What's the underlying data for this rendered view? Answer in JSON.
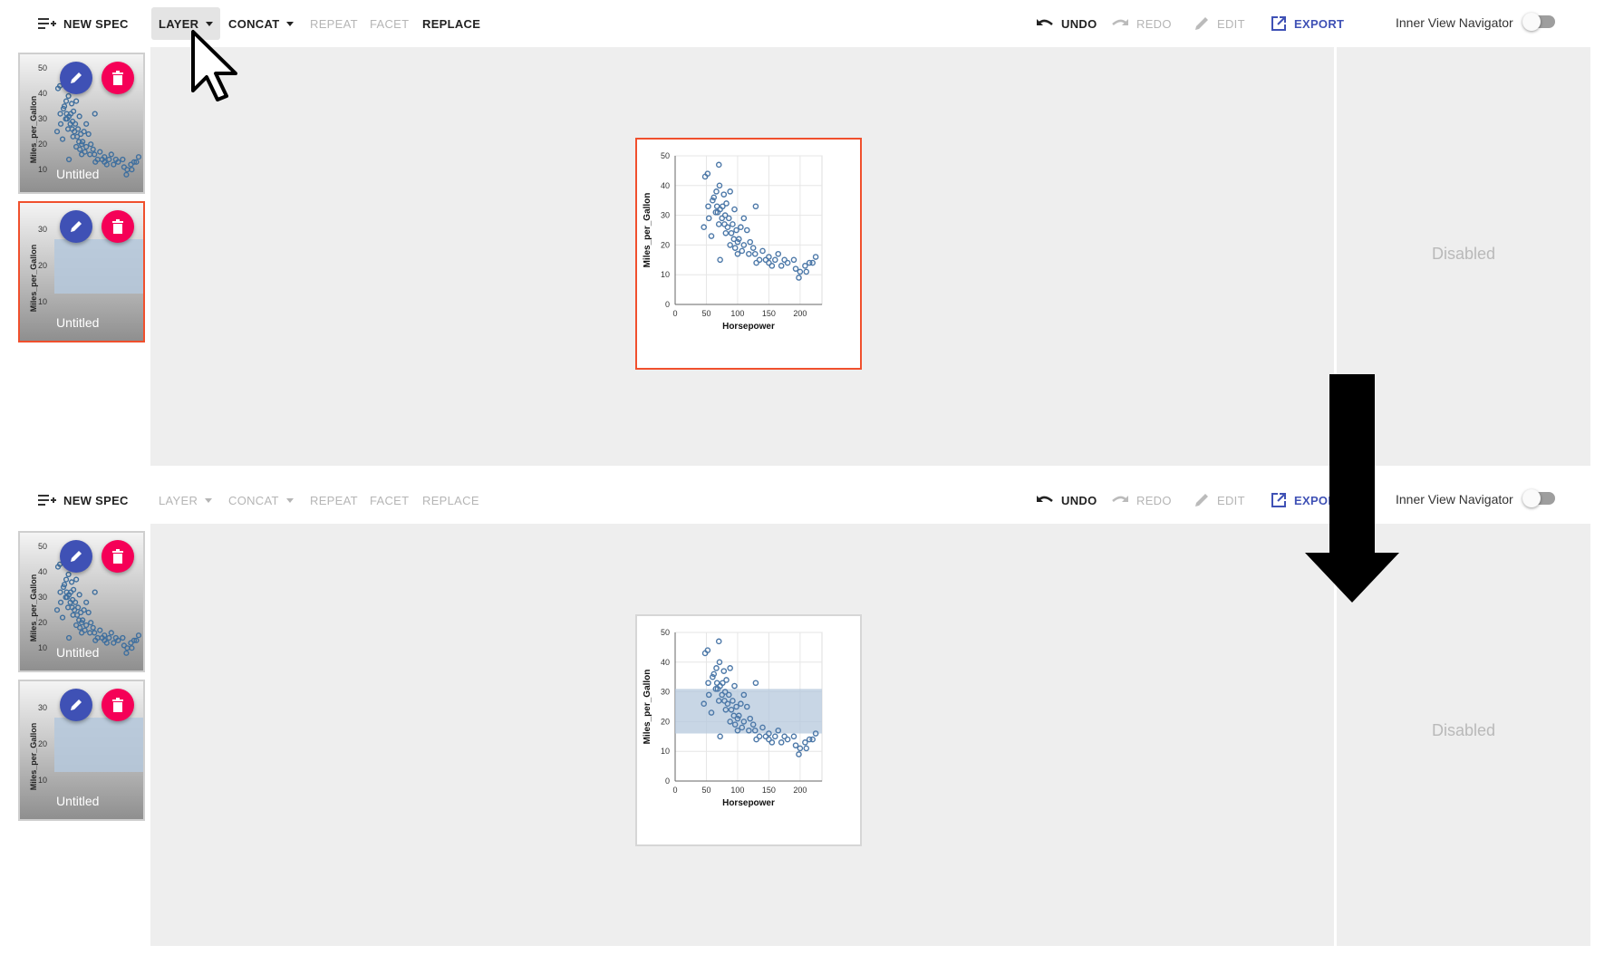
{
  "toolbar": {
    "new_spec": "NEW SPEC",
    "layer": "LAYER",
    "concat": "CONCAT",
    "repeat": "REPEAT",
    "facet": "FACET",
    "replace": "REPLACE",
    "undo": "UNDO",
    "redo": "REDO",
    "edit": "EDIT",
    "export": "EXPORT",
    "export_partial": "EXPOR",
    "navigator_label": "Inner View Navigator"
  },
  "thumbnails": [
    {
      "label": "Untitled",
      "ylabel": "Miles_per_Gallon",
      "ticks": [
        "50",
        "40",
        "30",
        "20",
        "10"
      ]
    },
    {
      "label": "Untitled",
      "ylabel": "Miles_per_Gallon",
      "ticks": [
        "30",
        "20",
        "10"
      ]
    }
  ],
  "side_panel": {
    "status": "Disabled"
  },
  "colors": {
    "accent": "#3f51b5",
    "delete": "#f50057",
    "selection": "#f0502d",
    "point": "#4c78a8",
    "band": "#b5c8dc"
  },
  "chart_data": [
    {
      "type": "scatter",
      "xlabel": "Horsepower",
      "ylabel": "Miles_per_Gallon",
      "xlim": [
        0,
        235
      ],
      "ylim": [
        0,
        50
      ],
      "xticks": [
        0,
        50,
        100,
        150,
        200
      ],
      "yticks": [
        0,
        10,
        20,
        30,
        40,
        50
      ],
      "band": null,
      "points": [
        [
          46,
          26
        ],
        [
          48,
          43
        ],
        [
          52,
          44
        ],
        [
          53,
          33
        ],
        [
          54,
          29
        ],
        [
          58,
          23
        ],
        [
          60,
          35
        ],
        [
          62,
          36
        ],
        [
          65,
          31
        ],
        [
          66,
          38
        ],
        [
          67,
          33
        ],
        [
          68,
          31
        ],
        [
          70,
          27
        ],
        [
          70,
          47
        ],
        [
          71,
          40
        ],
        [
          72,
          32
        ],
        [
          72,
          15
        ],
        [
          75,
          29
        ],
        [
          76,
          33
        ],
        [
          78,
          37
        ],
        [
          79,
          27
        ],
        [
          80,
          30
        ],
        [
          81,
          24
        ],
        [
          82,
          34
        ],
        [
          84,
          26
        ],
        [
          86,
          29
        ],
        [
          88,
          20
        ],
        [
          88,
          38
        ],
        [
          90,
          24
        ],
        [
          92,
          27
        ],
        [
          94,
          22
        ],
        [
          95,
          32
        ],
        [
          96,
          19
        ],
        [
          98,
          25
        ],
        [
          100,
          21
        ],
        [
          100,
          17
        ],
        [
          102,
          22
        ],
        [
          105,
          26
        ],
        [
          107,
          18
        ],
        [
          110,
          20
        ],
        [
          110,
          29
        ],
        [
          115,
          25
        ],
        [
          118,
          17
        ],
        [
          120,
          21
        ],
        [
          125,
          19
        ],
        [
          128,
          17
        ],
        [
          129,
          33
        ],
        [
          130,
          14
        ],
        [
          135,
          15
        ],
        [
          140,
          18
        ],
        [
          145,
          15
        ],
        [
          150,
          14
        ],
        [
          150,
          16
        ],
        [
          155,
          13
        ],
        [
          160,
          15
        ],
        [
          165,
          17
        ],
        [
          170,
          13
        ],
        [
          175,
          15
        ],
        [
          180,
          14
        ],
        [
          190,
          15
        ],
        [
          193,
          12
        ],
        [
          198,
          9
        ],
        [
          200,
          11
        ],
        [
          208,
          13
        ],
        [
          210,
          11
        ],
        [
          215,
          14
        ],
        [
          220,
          14
        ],
        [
          225,
          16
        ]
      ]
    },
    {
      "type": "scatter",
      "xlabel": "Horsepower",
      "ylabel": "Miles_per_Gallon",
      "xlim": [
        0,
        235
      ],
      "ylim": [
        0,
        50
      ],
      "xticks": [
        0,
        50,
        100,
        150,
        200
      ],
      "yticks": [
        0,
        10,
        20,
        30,
        40,
        50
      ],
      "band": [
        16,
        31
      ],
      "points": [
        [
          46,
          26
        ],
        [
          48,
          43
        ],
        [
          52,
          44
        ],
        [
          53,
          33
        ],
        [
          54,
          29
        ],
        [
          58,
          23
        ],
        [
          60,
          35
        ],
        [
          62,
          36
        ],
        [
          65,
          31
        ],
        [
          66,
          38
        ],
        [
          67,
          33
        ],
        [
          68,
          31
        ],
        [
          70,
          27
        ],
        [
          70,
          47
        ],
        [
          71,
          40
        ],
        [
          72,
          32
        ],
        [
          72,
          15
        ],
        [
          75,
          29
        ],
        [
          76,
          33
        ],
        [
          78,
          37
        ],
        [
          79,
          27
        ],
        [
          80,
          30
        ],
        [
          81,
          24
        ],
        [
          82,
          34
        ],
        [
          84,
          26
        ],
        [
          86,
          29
        ],
        [
          88,
          20
        ],
        [
          88,
          38
        ],
        [
          90,
          24
        ],
        [
          92,
          27
        ],
        [
          94,
          22
        ],
        [
          95,
          32
        ],
        [
          96,
          19
        ],
        [
          98,
          25
        ],
        [
          100,
          21
        ],
        [
          100,
          17
        ],
        [
          102,
          22
        ],
        [
          105,
          26
        ],
        [
          107,
          18
        ],
        [
          110,
          20
        ],
        [
          110,
          29
        ],
        [
          115,
          25
        ],
        [
          118,
          17
        ],
        [
          120,
          21
        ],
        [
          125,
          19
        ],
        [
          128,
          17
        ],
        [
          129,
          33
        ],
        [
          130,
          14
        ],
        [
          135,
          15
        ],
        [
          140,
          18
        ],
        [
          145,
          15
        ],
        [
          150,
          14
        ],
        [
          150,
          16
        ],
        [
          155,
          13
        ],
        [
          160,
          15
        ],
        [
          165,
          17
        ],
        [
          170,
          13
        ],
        [
          175,
          15
        ],
        [
          180,
          14
        ],
        [
          190,
          15
        ],
        [
          193,
          12
        ],
        [
          198,
          9
        ],
        [
          200,
          11
        ],
        [
          208,
          13
        ],
        [
          210,
          11
        ],
        [
          215,
          14
        ],
        [
          220,
          14
        ],
        [
          225,
          16
        ]
      ]
    }
  ]
}
